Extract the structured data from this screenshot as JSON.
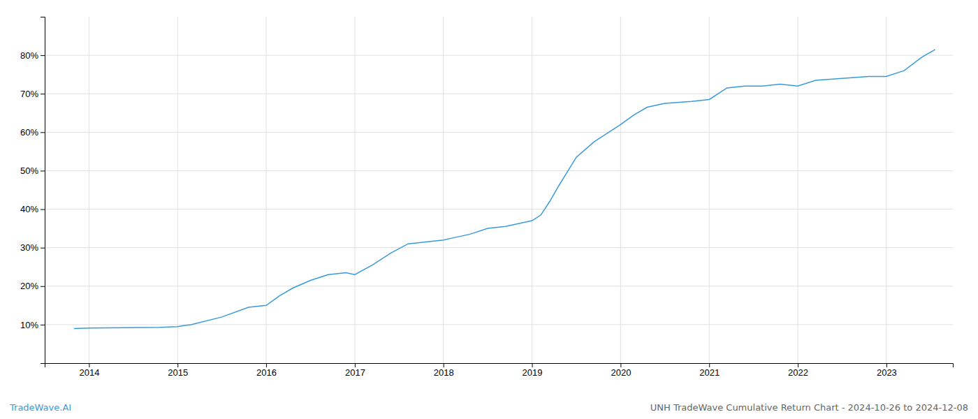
{
  "chart_data": {
    "type": "line",
    "title": "UNH TradeWave Cumulative Return Chart - 2024-10-26 to 2024-12-08",
    "annotations": [
      {
        "text": "TradeWave.AI",
        "color": "#3a9ad9"
      }
    ],
    "x": [
      2013.83,
      2014.0,
      2014.2,
      2014.4,
      2014.6,
      2014.8,
      2015.0,
      2015.08,
      2015.15,
      2015.5,
      2015.8,
      2016.0,
      2016.15,
      2016.3,
      2016.5,
      2016.7,
      2016.9,
      2017.0,
      2017.2,
      2017.4,
      2017.6,
      2017.8,
      2018.0,
      2018.1,
      2018.3,
      2018.5,
      2018.7,
      2018.9,
      2019.0,
      2019.1,
      2019.2,
      2019.3,
      2019.5,
      2019.7,
      2019.9,
      2020.0,
      2020.15,
      2020.3,
      2020.5,
      2020.8,
      2021.0,
      2021.2,
      2021.4,
      2021.6,
      2021.8,
      2022.0,
      2022.2,
      2022.5,
      2022.8,
      2023.0,
      2023.2,
      2023.4,
      2023.55
    ],
    "values": [
      9.0,
      9.1,
      9.15,
      9.2,
      9.25,
      9.3,
      9.5,
      9.8,
      10.0,
      12.0,
      14.5,
      15.0,
      17.5,
      19.5,
      21.5,
      23.0,
      23.5,
      23.0,
      25.5,
      28.5,
      31.0,
      31.5,
      32.0,
      32.5,
      33.5,
      35.0,
      35.5,
      36.5,
      37.0,
      38.5,
      42.0,
      46.0,
      53.5,
      57.5,
      60.5,
      62.0,
      64.5,
      66.5,
      67.5,
      68.0,
      68.5,
      71.5,
      72.0,
      72.0,
      72.5,
      72.0,
      73.5,
      74.0,
      74.5,
      74.5,
      76.0,
      79.5,
      81.5
    ],
    "color": "#3a9ad9",
    "xlim": [
      2013.5,
      2023.75
    ],
    "ylim": [
      0,
      90
    ],
    "xticks": [
      2014,
      2015,
      2016,
      2017,
      2018,
      2019,
      2020,
      2021,
      2022,
      2023
    ],
    "yticks": [
      {
        "value": 10,
        "label": "10%"
      },
      {
        "value": 20,
        "label": "20%"
      },
      {
        "value": 30,
        "label": "30%"
      },
      {
        "value": 40,
        "label": "40%"
      },
      {
        "value": 50,
        "label": "50%"
      },
      {
        "value": 60,
        "label": "60%"
      },
      {
        "value": 70,
        "label": "70%"
      },
      {
        "value": 80,
        "label": "80%"
      }
    ],
    "grid": true
  }
}
